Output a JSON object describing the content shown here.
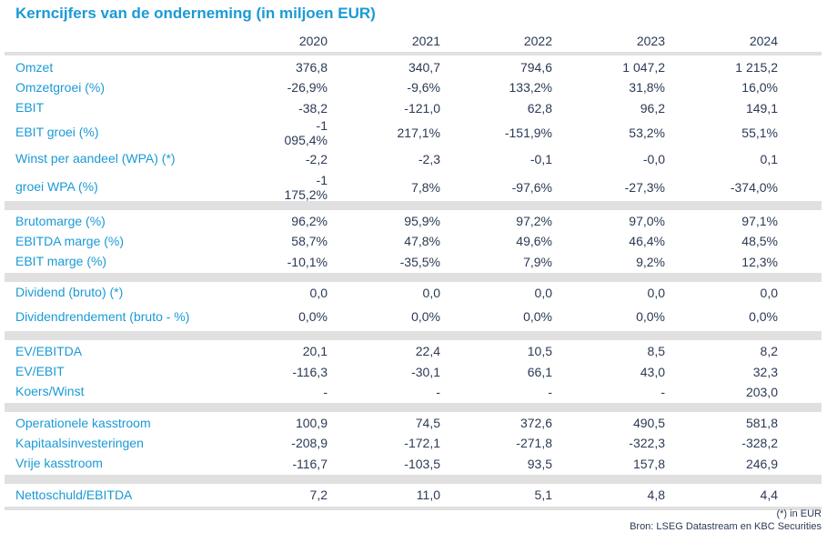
{
  "title": "Kerncijfers van de onderneming (in miljoen EUR)",
  "columns": [
    "2020",
    "2021",
    "2022",
    "2023",
    "2024"
  ],
  "groups": [
    {
      "rows": [
        {
          "label": "Omzet",
          "values": [
            "376,8",
            "340,7",
            "794,6",
            "1 047,2",
            "1 215,2"
          ]
        },
        {
          "label": "Omzetgroei (%)",
          "values": [
            "-26,9%",
            "-9,6%",
            "133,2%",
            "31,8%",
            "16,0%"
          ]
        },
        {
          "label": "EBIT",
          "values": [
            "-38,2",
            "-121,0",
            "62,8",
            "96,2",
            "149,1"
          ]
        },
        {
          "label": "EBIT groei (%)",
          "values": [
            "-1 095,4%",
            "217,1%",
            "-151,9%",
            "53,2%",
            "55,1%"
          ],
          "tall": true
        },
        {
          "label": "Winst per aandeel (WPA) (*)",
          "values": [
            "-2,2",
            "-2,3",
            "-0,1",
            "-0,0",
            "0,1"
          ],
          "tall": true
        },
        {
          "label": "groei WPA (%)",
          "values": [
            "-1 175,2%",
            "7,8%",
            "-97,6%",
            "-27,3%",
            "-374,0%"
          ],
          "tall": true
        }
      ]
    },
    {
      "rows": [
        {
          "label": "Brutomarge (%)",
          "values": [
            "96,2%",
            "95,9%",
            "97,2%",
            "97,0%",
            "97,1%"
          ]
        },
        {
          "label": "EBITDA marge (%)",
          "values": [
            "58,7%",
            "47,8%",
            "49,6%",
            "46,4%",
            "48,5%"
          ]
        },
        {
          "label": "EBIT marge (%)",
          "values": [
            "-10,1%",
            "-35,5%",
            "7,9%",
            "9,2%",
            "12,3%"
          ]
        }
      ]
    },
    {
      "rows": [
        {
          "label": "Dividend (bruto) (*)",
          "values": [
            "0,0",
            "0,0",
            "0,0",
            "0,0",
            "0,0"
          ]
        },
        {
          "label": "Dividendrendement (bruto - %)",
          "values": [
            "0,0%",
            "0,0%",
            "0,0%",
            "0,0%",
            "0,0%"
          ],
          "tall": true
        }
      ]
    },
    {
      "rows": [
        {
          "label": "EV/EBITDA",
          "values": [
            "20,1",
            "22,4",
            "10,5",
            "8,5",
            "8,2"
          ]
        },
        {
          "label": "EV/EBIT",
          "values": [
            "-116,3",
            "-30,1",
            "66,1",
            "43,0",
            "32,3"
          ]
        },
        {
          "label": "Koers/Winst",
          "values": [
            "-",
            "-",
            "-",
            "-",
            "203,0"
          ]
        }
      ]
    },
    {
      "rows": [
        {
          "label": "Operationele kasstroom",
          "values": [
            "100,9",
            "74,5",
            "372,6",
            "490,5",
            "581,8"
          ]
        },
        {
          "label": "Kapitaalsinvesteringen",
          "values": [
            "-208,9",
            "-172,1",
            "-271,8",
            "-322,3",
            "-328,2"
          ]
        },
        {
          "label": "Vrije kasstroom",
          "values": [
            "-116,7",
            "-103,5",
            "93,5",
            "157,8",
            "246,9"
          ]
        }
      ]
    },
    {
      "rows": [
        {
          "label": "Nettoschuld/EBITDA",
          "values": [
            "7,2",
            "11,0",
            "5,1",
            "4,8",
            "4,4"
          ]
        }
      ]
    }
  ],
  "footnote": "(*) in EUR",
  "source": "Bron: LSEG Datastream en KBC Securities",
  "colors": {
    "label": "#1a9ad6",
    "value": "#2b3a55",
    "band": "#e0e0e0"
  }
}
